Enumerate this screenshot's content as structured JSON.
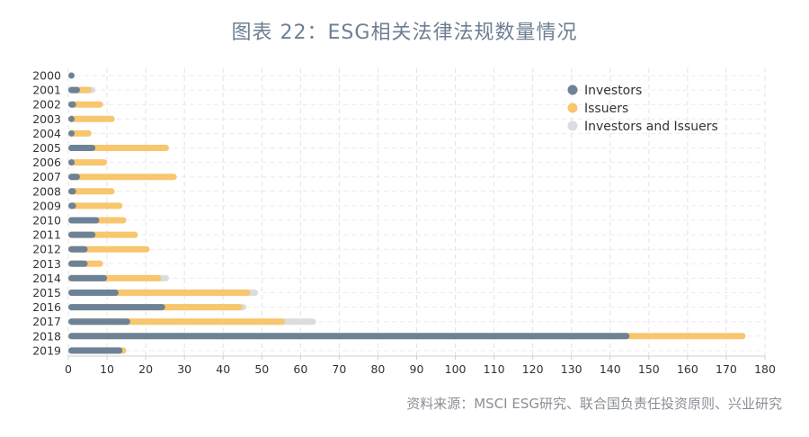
{
  "chart_data": {
    "type": "bar",
    "stacked": true,
    "orientation": "horizontal",
    "title": "图表 22：ESG相关法律法规数量情况",
    "source": "资料来源：MSCI ESG研究、联合国负责任投资原则、兴业研究",
    "categories": [
      "2000",
      "2001",
      "2002",
      "2003",
      "2004",
      "2005",
      "2006",
      "2007",
      "2008",
      "2009",
      "2010",
      "2011",
      "2012",
      "2013",
      "2014",
      "2015",
      "2016",
      "2017",
      "2018",
      "2019"
    ],
    "series": [
      {
        "name": "Investors",
        "color": "#6d8296",
        "values": [
          1,
          3,
          2,
          1,
          1,
          7,
          1,
          3,
          2,
          2,
          8,
          7,
          5,
          5,
          10,
          13,
          25,
          16,
          145,
          14
        ]
      },
      {
        "name": "Issuers",
        "color": "#f7c66d",
        "values": [
          0,
          3,
          7,
          11,
          5,
          19,
          9,
          25,
          10,
          12,
          7,
          11,
          16,
          4,
          14,
          34,
          20,
          40,
          30,
          1
        ]
      },
      {
        "name": "Investors and Issuers",
        "color": "#dcdcdc",
        "values": [
          0,
          1,
          0,
          0,
          0,
          0,
          0,
          0,
          0,
          0,
          0,
          0,
          0,
          0,
          2,
          2,
          1,
          8,
          0,
          0
        ]
      }
    ],
    "xlim": [
      0,
      180
    ],
    "xticks": [
      0,
      10,
      20,
      30,
      40,
      50,
      60,
      70,
      80,
      90,
      100,
      110,
      120,
      130,
      140,
      150,
      160,
      170,
      180
    ],
    "grid": true,
    "legend": "top-right"
  }
}
